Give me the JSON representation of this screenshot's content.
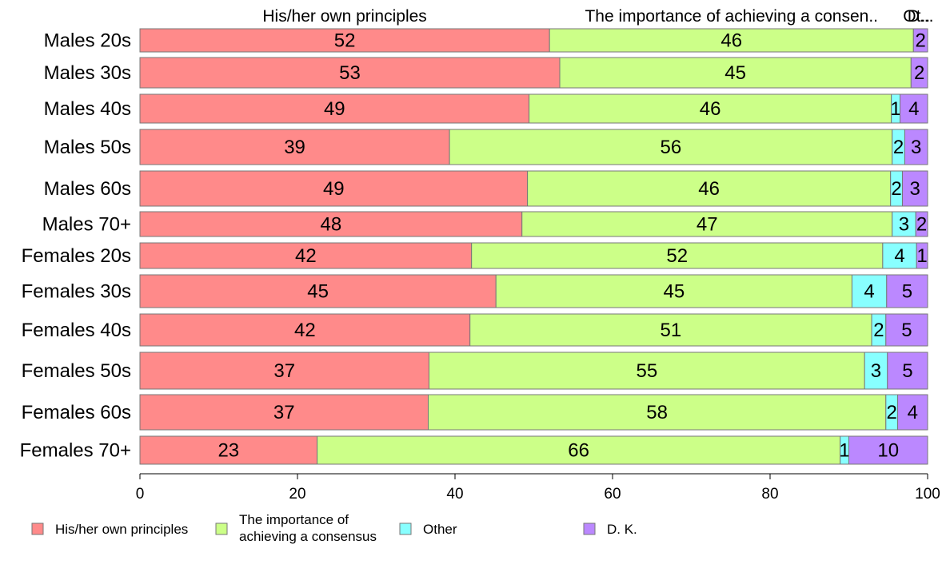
{
  "chart_data": {
    "type": "bar",
    "orientation": "horizontal",
    "stacked": true,
    "categories": [
      "Males 20s",
      "Males 30s",
      "Males 40s",
      "Males 50s",
      "Males 60s",
      "Males 70+",
      "Females 20s",
      "Females 30s",
      "Females 40s",
      "Females 50s",
      "Females 60s",
      "Females 70+"
    ],
    "series": [
      {
        "name": "His/her own principles",
        "color": "#ff8a8a",
        "values": [
          52,
          53,
          49,
          39,
          49,
          48,
          42,
          45,
          42,
          37,
          37,
          23
        ]
      },
      {
        "name": "The importance of achieving a consensus",
        "color": "#ccff88",
        "values": [
          46,
          45,
          46,
          56,
          46,
          47,
          52,
          45,
          51,
          55,
          58,
          66
        ]
      },
      {
        "name": "Other",
        "color": "#88ffff",
        "values": [
          0,
          0,
          1,
          2,
          2,
          3,
          4,
          4,
          2,
          3,
          2,
          1
        ]
      },
      {
        "name": "D. K.",
        "color": "#bb88ff",
        "values": [
          2,
          2,
          4,
          3,
          3,
          2,
          1,
          5,
          5,
          5,
          4,
          10
        ]
      }
    ],
    "segment_positions": [
      [
        52.0,
        46.2,
        0.0,
        1.8
      ],
      [
        53.3,
        44.6,
        0.0,
        2.1
      ],
      [
        49.4,
        46.0,
        1.1,
        3.5
      ],
      [
        39.3,
        56.2,
        1.6,
        2.9
      ],
      [
        49.2,
        46.1,
        1.5,
        3.2
      ],
      [
        48.5,
        47.0,
        3.0,
        1.5
      ],
      [
        42.1,
        52.2,
        4.3,
        1.4
      ],
      [
        45.2,
        45.2,
        4.4,
        5.2
      ],
      [
        41.9,
        51.0,
        1.8,
        5.3
      ],
      [
        36.7,
        55.3,
        2.9,
        5.1
      ],
      [
        36.6,
        58.1,
        1.5,
        3.8
      ],
      [
        22.5,
        66.4,
        1.1,
        10.0
      ]
    ],
    "top_labels": [
      "His/her own principles",
      "The importance of achieving a consen..",
      "Ot..",
      "D..."
    ],
    "legend_labels": [
      [
        "His/her own principles"
      ],
      [
        "The importance of",
        "achieving a consensus"
      ],
      [
        "Other"
      ],
      [
        "D. K."
      ]
    ],
    "xlim": [
      0,
      100
    ],
    "xticks": [
      0,
      20,
      40,
      60,
      80,
      100
    ],
    "legend_position": "bottom",
    "grid": false
  }
}
